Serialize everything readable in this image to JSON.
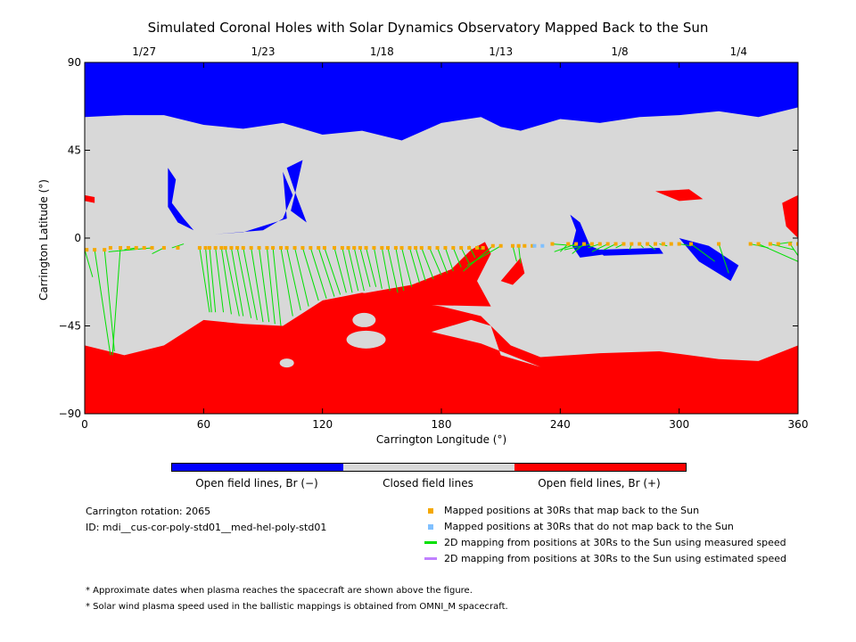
{
  "colors": {
    "open_negative": "#0000ff",
    "closed": "#d8d8d8",
    "open_positive": "#ff0000",
    "mapped": "#f5a800",
    "not_mapped": "#80c0ff",
    "measured_line": "#00e000",
    "estimated_line": "#c080ff"
  },
  "chart_data": {
    "type": "map",
    "title": "Simulated Coronal Holes with Solar Dynamics Observatory Mapped Back to the Sun",
    "xlabel": "Carrington Longitude (°)",
    "ylabel": "Carrington Latitude (°)",
    "xlim": [
      0,
      360
    ],
    "ylim": [
      -90,
      90
    ],
    "x_ticks": [
      0,
      60,
      120,
      180,
      240,
      300,
      360
    ],
    "y_ticks": [
      -90,
      -45,
      0,
      45,
      90
    ],
    "x_tick_labels": [
      "0",
      "60",
      "120",
      "180",
      "240",
      "300",
      "360"
    ],
    "y_tick_labels": [
      "−90",
      "−45",
      "0",
      "45",
      "90"
    ],
    "top_dates": [
      {
        "lon": 30,
        "label": "1/27"
      },
      {
        "lon": 90,
        "label": "1/23"
      },
      {
        "lon": 150,
        "label": "1/18"
      },
      {
        "lon": 210,
        "label": "1/13"
      },
      {
        "lon": 270,
        "label": "1/8"
      },
      {
        "lon": 330,
        "label": "1/4"
      }
    ],
    "north_hole_boundary": [
      [
        0,
        62
      ],
      [
        20,
        63
      ],
      [
        40,
        63
      ],
      [
        60,
        58
      ],
      [
        80,
        56
      ],
      [
        100,
        59
      ],
      [
        120,
        53
      ],
      [
        140,
        55
      ],
      [
        160,
        50
      ],
      [
        180,
        59
      ],
      [
        200,
        62
      ],
      [
        210,
        57
      ],
      [
        220,
        55
      ],
      [
        240,
        61
      ],
      [
        260,
        59
      ],
      [
        280,
        62
      ],
      [
        300,
        63
      ],
      [
        320,
        65
      ],
      [
        340,
        62
      ],
      [
        360,
        67
      ]
    ],
    "south_hole_boundary": [
      [
        0,
        -55
      ],
      [
        20,
        -60
      ],
      [
        40,
        -55
      ],
      [
        60,
        -42
      ],
      [
        80,
        -44
      ],
      [
        100,
        -45
      ],
      [
        120,
        -32
      ],
      [
        140,
        -28
      ],
      [
        160,
        -32
      ],
      [
        180,
        -35
      ],
      [
        200,
        -40
      ],
      [
        205,
        -45
      ],
      [
        215,
        -55
      ],
      [
        230,
        -61
      ],
      [
        260,
        -59
      ],
      [
        290,
        -58
      ],
      [
        320,
        -62
      ],
      [
        340,
        -63
      ],
      [
        360,
        -55
      ]
    ],
    "mapped_positions": {
      "lon": [
        1,
        5,
        10,
        13,
        18,
        22,
        26,
        30,
        34,
        40,
        47,
        58,
        61,
        63,
        66,
        69,
        71,
        74,
        77,
        80,
        84,
        88,
        92,
        95,
        99,
        102,
        106,
        110,
        114,
        118,
        121,
        126,
        130,
        133,
        136,
        139,
        142,
        146,
        150,
        153,
        157,
        160,
        164,
        167,
        170,
        174,
        178,
        182,
        186,
        190,
        194,
        198,
        201,
        206,
        210,
        216,
        219,
        222,
        226,
        236,
        244,
        248,
        252,
        256,
        260,
        264,
        268,
        272,
        276,
        280,
        284,
        288,
        292,
        296,
        300,
        306,
        320,
        336,
        340,
        346,
        350,
        356,
        360
      ],
      "lat": [
        -6,
        -6,
        -6,
        -5,
        -5,
        -5,
        -5,
        -5,
        -5,
        -5,
        -5,
        -5,
        -5,
        -5,
        -5,
        -5,
        -5,
        -5,
        -5,
        -5,
        -5,
        -5,
        -5,
        -5,
        -5,
        -5,
        -5,
        -5,
        -5,
        -5,
        -5,
        -5,
        -5,
        -5,
        -5,
        -5,
        -5,
        -5,
        -5,
        -5,
        -5,
        -5,
        -5,
        -5,
        -5,
        -5,
        -5,
        -5,
        -5,
        -5,
        -5,
        -5,
        -5,
        -4,
        -4,
        -4,
        -4,
        -4,
        -4,
        -3,
        -3,
        -3,
        -3,
        -3,
        -3,
        -3,
        -3,
        -3,
        -3,
        -3,
        -3,
        -3,
        -3,
        -3,
        -3,
        -3,
        -3,
        -3,
        -3,
        -3,
        -3,
        -3,
        -3
      ]
    },
    "unmapped_positions": {
      "lon": [
        227,
        231
      ],
      "lat": [
        -4,
        -4
      ]
    },
    "mapping_lines_measured": [
      [
        [
          0,
          -6
        ],
        [
          4,
          -20
        ]
      ],
      [
        [
          5,
          -6
        ],
        [
          13,
          -60
        ]
      ],
      [
        [
          10,
          -6
        ],
        [
          15,
          -58
        ]
      ],
      [
        [
          18,
          -5
        ],
        [
          14,
          -60
        ]
      ],
      [
        [
          26,
          -5
        ],
        [
          20,
          -6
        ]
      ],
      [
        [
          34,
          -5
        ],
        [
          12,
          -7
        ]
      ],
      [
        [
          40,
          -5
        ],
        [
          34,
          -8
        ]
      ],
      [
        [
          44,
          -5
        ],
        [
          50,
          -3
        ]
      ],
      [
        [
          58,
          -5
        ],
        [
          63,
          -38
        ]
      ],
      [
        [
          61,
          -5
        ],
        [
          64,
          -38
        ]
      ],
      [
        [
          63,
          -5
        ],
        [
          66,
          -38
        ]
      ],
      [
        [
          66,
          -5
        ],
        [
          70,
          -38
        ]
      ],
      [
        [
          69,
          -5
        ],
        [
          74,
          -39
        ]
      ],
      [
        [
          71,
          -5
        ],
        [
          78,
          -40
        ]
      ],
      [
        [
          74,
          -5
        ],
        [
          80,
          -40
        ]
      ],
      [
        [
          77,
          -5
        ],
        [
          84,
          -41
        ]
      ],
      [
        [
          80,
          -5
        ],
        [
          87,
          -42
        ]
      ],
      [
        [
          84,
          -5
        ],
        [
          90,
          -43
        ]
      ],
      [
        [
          88,
          -5
        ],
        [
          93,
          -43
        ]
      ],
      [
        [
          92,
          -5
        ],
        [
          96,
          -44
        ]
      ],
      [
        [
          95,
          -5
        ],
        [
          99,
          -45
        ]
      ],
      [
        [
          99,
          -5
        ],
        [
          105,
          -40
        ]
      ],
      [
        [
          102,
          -5
        ],
        [
          109,
          -37
        ]
      ],
      [
        [
          106,
          -5
        ],
        [
          113,
          -35
        ]
      ],
      [
        [
          110,
          -5
        ],
        [
          118,
          -32
        ]
      ],
      [
        [
          114,
          -5
        ],
        [
          122,
          -31
        ]
      ],
      [
        [
          118,
          -5
        ],
        [
          126,
          -30
        ]
      ],
      [
        [
          121,
          -5
        ],
        [
          129,
          -29
        ]
      ],
      [
        [
          126,
          -5
        ],
        [
          132,
          -28
        ]
      ],
      [
        [
          130,
          -5
        ],
        [
          135,
          -28
        ]
      ],
      [
        [
          133,
          -5
        ],
        [
          138,
          -27
        ]
      ],
      [
        [
          136,
          -5
        ],
        [
          141,
          -27
        ]
      ],
      [
        [
          139,
          -5
        ],
        [
          144,
          -25
        ]
      ],
      [
        [
          142,
          -5
        ],
        [
          147,
          -25
        ]
      ],
      [
        [
          146,
          -5
        ],
        [
          150,
          -26
        ]
      ],
      [
        [
          150,
          -5
        ],
        [
          154,
          -27
        ]
      ],
      [
        [
          153,
          -5
        ],
        [
          158,
          -28
        ]
      ],
      [
        [
          157,
          -5
        ],
        [
          161,
          -27
        ]
      ],
      [
        [
          160,
          -5
        ],
        [
          165,
          -25
        ]
      ],
      [
        [
          164,
          -5
        ],
        [
          169,
          -23
        ]
      ],
      [
        [
          167,
          -5
        ],
        [
          172,
          -22
        ]
      ],
      [
        [
          170,
          -5
        ],
        [
          176,
          -21
        ]
      ],
      [
        [
          174,
          -5
        ],
        [
          180,
          -19
        ]
      ],
      [
        [
          178,
          -5
        ],
        [
          183,
          -18
        ]
      ],
      [
        [
          182,
          -5
        ],
        [
          186,
          -17
        ]
      ],
      [
        [
          186,
          -5
        ],
        [
          190,
          -15
        ]
      ],
      [
        [
          190,
          -5
        ],
        [
          194,
          -13
        ]
      ],
      [
        [
          194,
          -4
        ],
        [
          197,
          -10
        ]
      ],
      [
        [
          198,
          -4
        ],
        [
          200,
          -6
        ]
      ],
      [
        [
          206,
          -4
        ],
        [
          191,
          -17
        ]
      ],
      [
        [
          210,
          -4
        ],
        [
          193,
          -14
        ]
      ],
      [
        [
          216,
          -4
        ],
        [
          218,
          -12
        ]
      ],
      [
        [
          219,
          -4
        ],
        [
          220,
          -13
        ]
      ],
      [
        [
          236,
          -3
        ],
        [
          248,
          -4
        ]
      ],
      [
        [
          244,
          -3
        ],
        [
          240,
          -7
        ]
      ],
      [
        [
          248,
          -3
        ],
        [
          237,
          -7
        ]
      ],
      [
        [
          252,
          -3
        ],
        [
          246,
          -8
        ]
      ],
      [
        [
          256,
          -3
        ],
        [
          242,
          -6
        ]
      ],
      [
        [
          260,
          -3
        ],
        [
          254,
          -5
        ]
      ],
      [
        [
          264,
          -3
        ],
        [
          256,
          -7
        ]
      ],
      [
        [
          268,
          -3
        ],
        [
          262,
          -6
        ]
      ],
      [
        [
          272,
          -3
        ],
        [
          268,
          -5
        ]
      ],
      [
        [
          276,
          -3
        ],
        [
          275,
          -6
        ]
      ],
      [
        [
          280,
          -3
        ],
        [
          282,
          -5
        ]
      ],
      [
        [
          284,
          -3
        ],
        [
          288,
          -6
        ]
      ],
      [
        [
          290,
          -3
        ],
        [
          294,
          -4
        ]
      ],
      [
        [
          300,
          -3
        ],
        [
          306,
          -4
        ]
      ],
      [
        [
          306,
          -3
        ],
        [
          318,
          -12
        ]
      ],
      [
        [
          320,
          -3
        ],
        [
          325,
          -18
        ]
      ],
      [
        [
          336,
          -3
        ],
        [
          345,
          -5
        ]
      ],
      [
        [
          340,
          -3
        ],
        [
          360,
          -12
        ]
      ],
      [
        [
          346,
          -3
        ],
        [
          358,
          -6
        ]
      ],
      [
        [
          350,
          -3
        ],
        [
          357,
          -2
        ]
      ],
      [
        [
          356,
          -3
        ],
        [
          360,
          -9
        ]
      ]
    ]
  },
  "colorbar": {
    "labels": [
      "Open field lines, Br (−)",
      "Closed field lines",
      "Open field lines, Br (+)"
    ]
  },
  "info": {
    "rotation": "Carrington rotation: 2065",
    "id": "ID: mdi__cus-cor-poly-std01__med-hel-poly-std01"
  },
  "legend": [
    {
      "label": "Mapped positions at 30Rs that map back to the Sun"
    },
    {
      "label": "Mapped positions at 30Rs that do not map back to the Sun"
    },
    {
      "label": "2D mapping from positions at 30Rs to the Sun using measured speed"
    },
    {
      "label": "2D mapping from positions at 30Rs to the Sun using estimated speed"
    }
  ],
  "notes": [
    "* Approximate dates when plasma reaches the spacecraft are shown above the figure.",
    "* Solar wind plasma speed used in the ballistic mappings is obtained from OMNI_M spacecraft."
  ]
}
